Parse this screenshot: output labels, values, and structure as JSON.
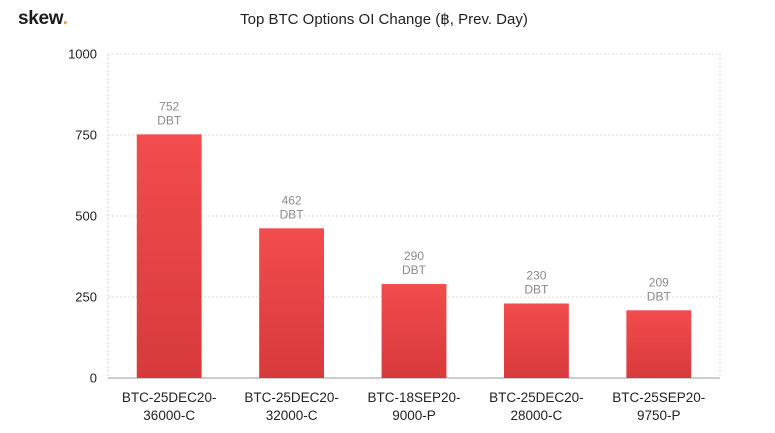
{
  "brand": {
    "name": "skew",
    "dot": "."
  },
  "chart_data": {
    "type": "bar",
    "title": "Top BTC Options OI Change (฿, Prev. Day)",
    "categories": [
      [
        "BTC-25DEC20-",
        "36000-C"
      ],
      [
        "BTC-25DEC20-",
        "32000-C"
      ],
      [
        "BTC-18SEP20-",
        "9000-P"
      ],
      [
        "BTC-25DEC20-",
        "28000-C"
      ],
      [
        "BTC-25SEP20-",
        "9750-P"
      ]
    ],
    "values": [
      752,
      462,
      290,
      230,
      209
    ],
    "value_unit": "DBT",
    "ylim": [
      0,
      1000
    ],
    "yticks": [
      0,
      250,
      500,
      750,
      1000
    ],
    "grid": true,
    "bar_color_top": "#f24c4e",
    "bar_color_bottom": "#d83a3c"
  }
}
